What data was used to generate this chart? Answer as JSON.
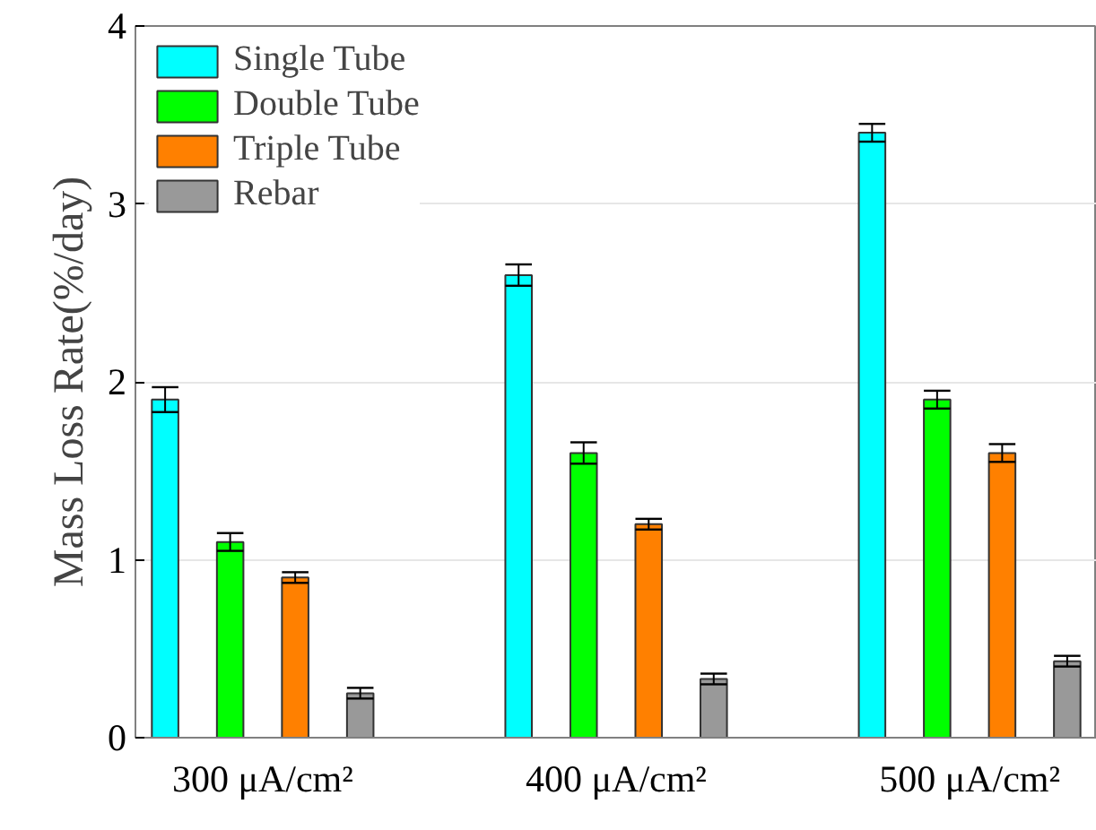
{
  "chart_data": {
    "type": "bar",
    "ylabel": "Mass Loss Rate(%/day)",
    "categories": [
      "300 μA/cm²",
      "400 μA/cm²",
      "500 μA/cm²"
    ],
    "series": [
      {
        "name": "Single Tube",
        "color": "#00ffff",
        "values": [
          1.9,
          2.6,
          3.4
        ],
        "errors": [
          0.07,
          0.06,
          0.05
        ]
      },
      {
        "name": "Double Tube",
        "color": "#00ff00",
        "values": [
          1.1,
          1.6,
          1.9
        ],
        "errors": [
          0.05,
          0.06,
          0.05
        ]
      },
      {
        "name": "Triple Tube",
        "color": "#ff8000",
        "values": [
          0.9,
          1.2,
          1.6
        ],
        "errors": [
          0.03,
          0.03,
          0.05
        ]
      },
      {
        "name": "Rebar",
        "color": "#999999",
        "values": [
          0.25,
          0.33,
          0.43
        ],
        "errors": [
          0.03,
          0.03,
          0.03
        ]
      }
    ],
    "ylim": [
      0,
      4
    ],
    "yticks": [
      0,
      1,
      2,
      3,
      4
    ],
    "grid": "y",
    "legend": "top left"
  }
}
